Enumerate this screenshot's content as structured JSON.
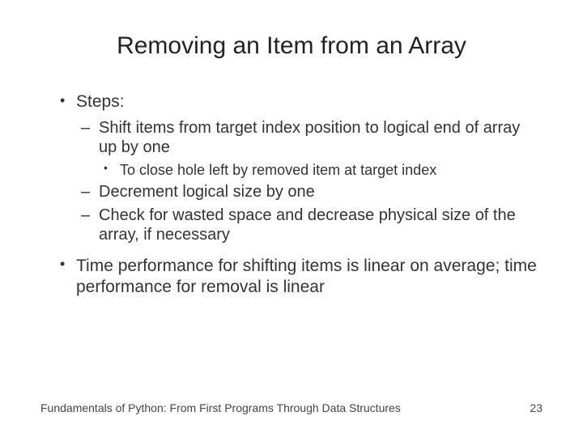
{
  "title": "Removing an Item from an Array",
  "bullets": {
    "steps_label": "Steps:",
    "step1": "Shift items from target index position to logical end of array up by one",
    "step1_sub": "To close hole left by removed item at target index",
    "step2": "Decrement logical size by one",
    "step3": "Check for wasted space and decrease physical size of the array, if necessary",
    "performance": "Time performance for shifting items is linear on average; time performance for removal is linear"
  },
  "footer": {
    "text": "Fundamentals of Python: From First Programs Through Data Structures",
    "page": "23"
  },
  "colors": {
    "background": "#ffffff",
    "text": "#333333",
    "title": "#222222",
    "footer": "#444444"
  },
  "typography": {
    "title_fontsize": 30,
    "level1_fontsize": 21,
    "level2_fontsize": 20,
    "level3_fontsize": 18,
    "footer_fontsize": 14,
    "font_family": "Arial"
  }
}
